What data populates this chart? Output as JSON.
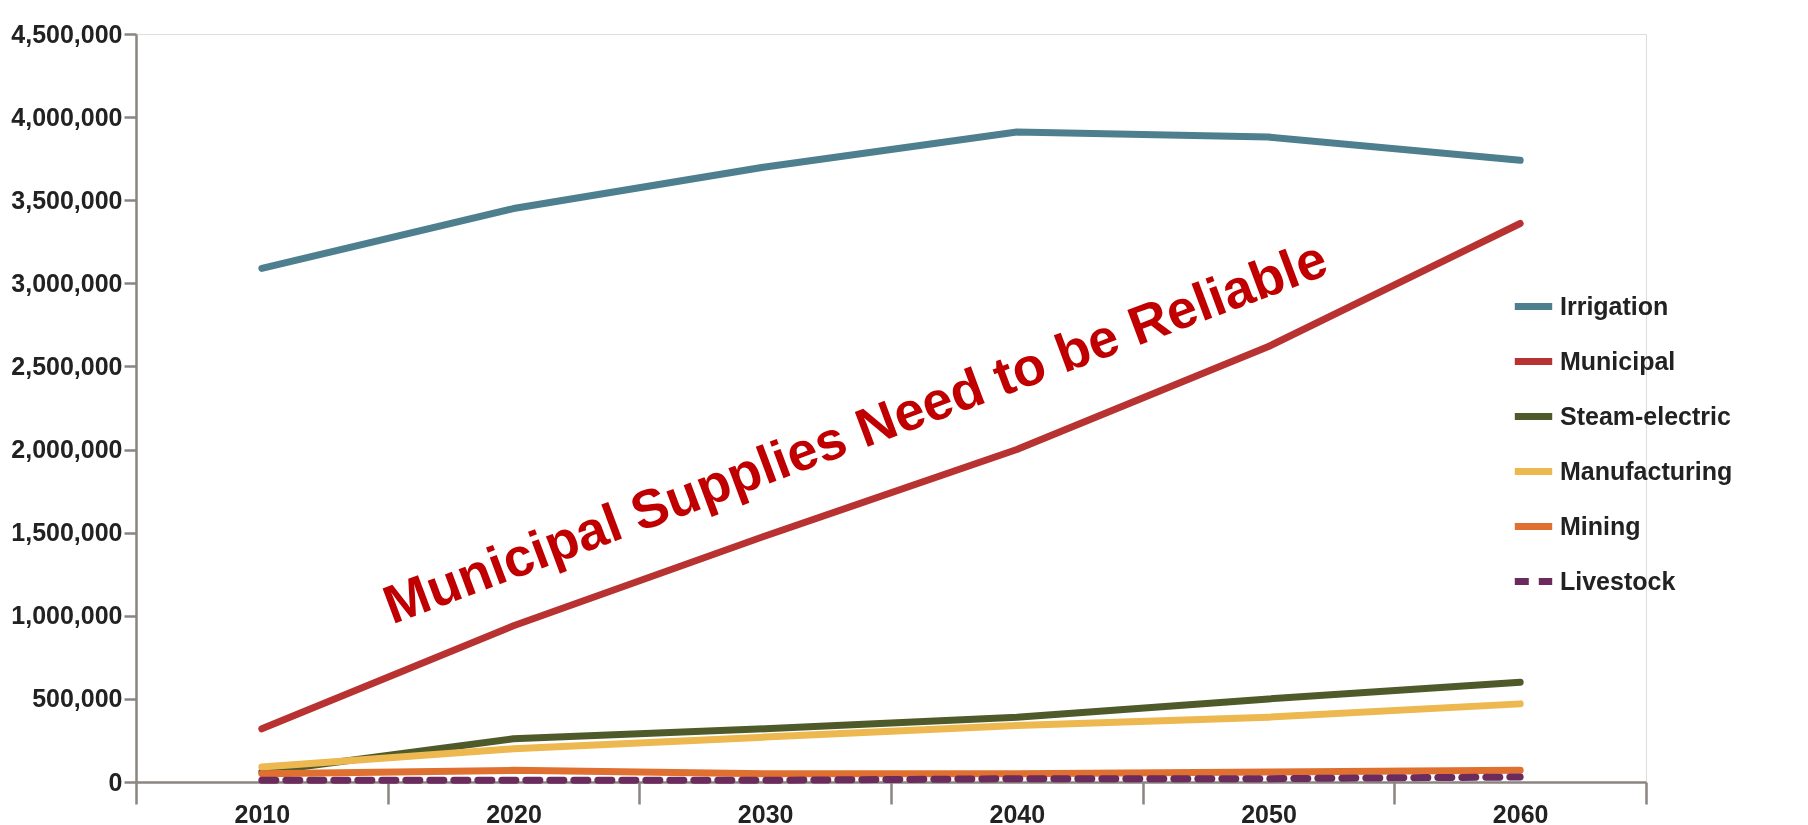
{
  "chart_data": {
    "type": "line",
    "categories": [
      "2010",
      "2020",
      "2030",
      "2040",
      "2050",
      "2060"
    ],
    "series": [
      {
        "name": "Irrigation",
        "color": "#4e7f8e",
        "values": [
          3090000,
          3450000,
          3700000,
          3910000,
          3880000,
          3740000
        ]
      },
      {
        "name": "Municipal",
        "color": "#b83232",
        "values": [
          320000,
          940000,
          1480000,
          2000000,
          2620000,
          3360000
        ]
      },
      {
        "name": "Steam-electric",
        "color": "#4f5a2a",
        "values": [
          60000,
          260000,
          320000,
          390000,
          500000,
          600000
        ]
      },
      {
        "name": "Manufacturing",
        "color": "#ecb84f",
        "values": [
          90000,
          200000,
          270000,
          340000,
          390000,
          470000
        ]
      },
      {
        "name": "Mining",
        "color": "#e0702f",
        "values": [
          50000,
          70000,
          50000,
          50000,
          60000,
          70000
        ]
      },
      {
        "name": "Livestock",
        "color": "#6b2b5c",
        "line_style": "dashed",
        "values": [
          10000,
          10000,
          10000,
          20000,
          20000,
          30000
        ]
      }
    ],
    "ylim": [
      0,
      4500000
    ],
    "yticks": [
      0,
      {
        "value": 500000,
        "label": "500,000"
      },
      {
        "value": 1000000,
        "label": "1,000,000"
      },
      {
        "value": 1500000,
        "label": "1,500,000"
      },
      {
        "value": 2000000,
        "label": "2,000,000"
      },
      {
        "value": 2500000,
        "label": "2,500,000"
      },
      {
        "value": 3000000,
        "label": "3,000,000"
      },
      {
        "value": 3500000,
        "label": "3,500,000"
      },
      {
        "value": 4000000,
        "label": "4,000,000"
      },
      {
        "value": 4500000,
        "label": "4,500,000"
      }
    ],
    "grid": false,
    "legend": "right",
    "line_style": "solid",
    "marker": "none",
    "annotations": [
      "Municipal Supplies Need to be Reliable"
    ]
  }
}
